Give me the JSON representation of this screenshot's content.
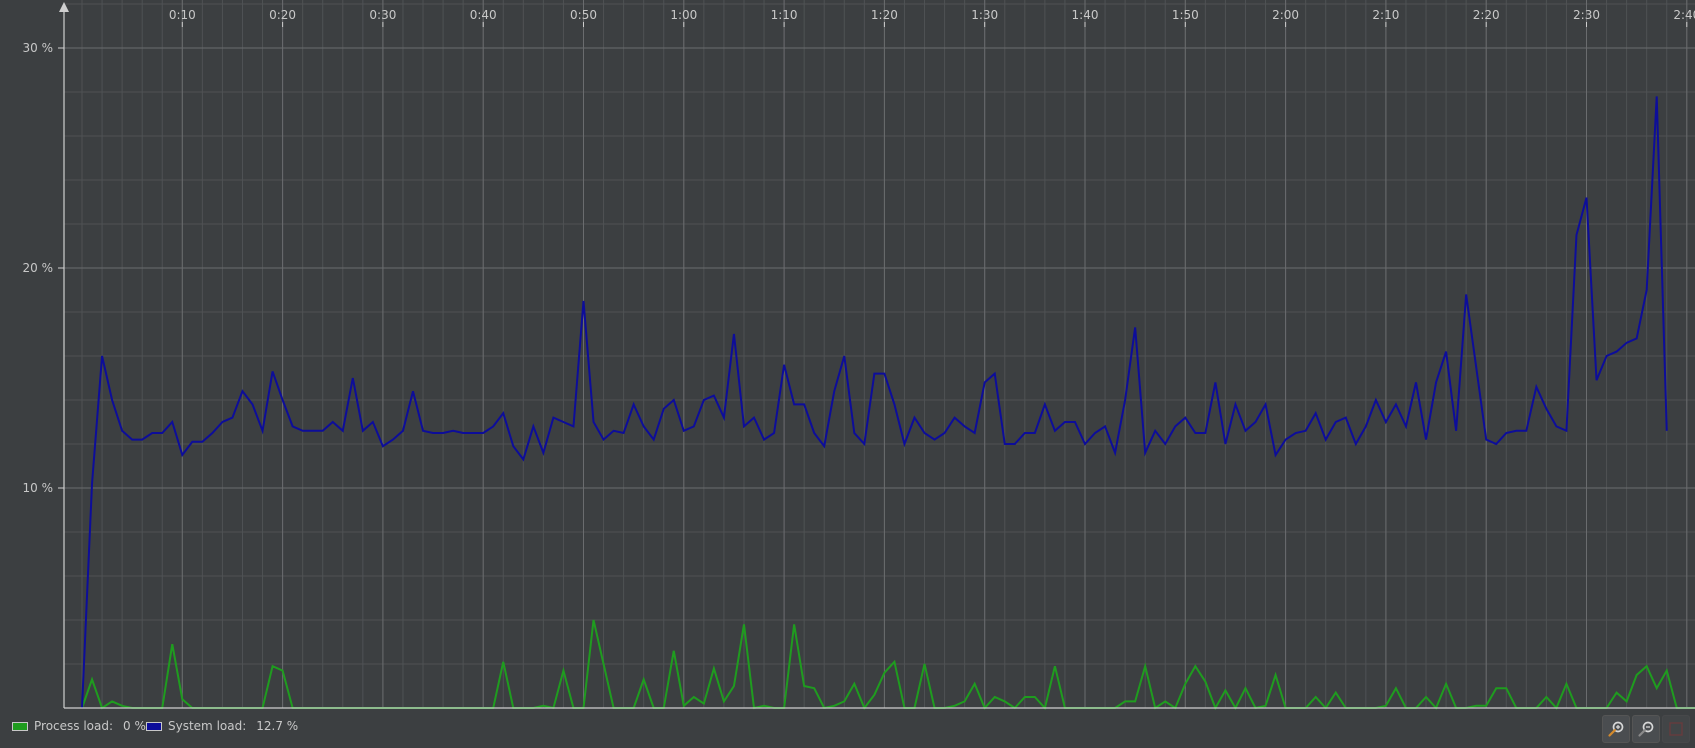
{
  "colors": {
    "background": "#3c3f41",
    "grid_major": "#6a6c6e",
    "grid_minor": "#4f5254",
    "axis": "#cfcfcf",
    "process": "#1f9c1f",
    "system": "#0d0d9a"
  },
  "legend": {
    "process_label": "Process load:",
    "process_value": "0 %",
    "system_label": "System load:",
    "system_value": "12.7 %"
  },
  "toolbar": {
    "zoom_in_icon": "magnifier-plus-icon",
    "zoom_out_icon": "magnifier-minus-icon",
    "fit_icon": "fit-icon"
  },
  "chart_data": {
    "type": "line",
    "grid": true,
    "legend_position": "bottom-left",
    "xlim": [
      0,
      160
    ],
    "ylim": [
      0,
      30
    ],
    "x_ticks": [
      "0:10",
      "0:20",
      "0:30",
      "0:40",
      "0:50",
      "1:00",
      "1:10",
      "1:20",
      "1:30",
      "1:40",
      "1:50",
      "2:00",
      "2:10",
      "2:20",
      "2:30",
      "2:40"
    ],
    "y_ticks": [
      "10 %",
      "20 %",
      "30 %"
    ],
    "series": [
      {
        "name": "System load",
        "color": "#0d0d9a",
        "values": [
          0,
          10.2,
          16,
          14,
          12.6,
          12.2,
          12.2,
          12.5,
          12.5,
          13,
          11.5,
          12.1,
          12.1,
          12.5,
          13,
          13.2,
          14.4,
          13.8,
          12.6,
          15.3,
          14,
          12.8,
          12.6,
          12.6,
          12.6,
          13,
          12.6,
          15,
          12.6,
          13,
          11.9,
          12.2,
          12.6,
          14.4,
          12.6,
          12.5,
          12.5,
          12.6,
          12.5,
          12.5,
          12.5,
          12.8,
          13.4,
          11.9,
          11.3,
          12.8,
          11.6,
          13.2,
          13,
          12.8,
          18.5,
          13,
          12.2,
          12.6,
          12.5,
          13.8,
          12.8,
          12.2,
          13.6,
          14,
          12.6,
          12.8,
          14,
          14.2,
          13.2,
          17,
          12.8,
          13.2,
          12.2,
          12.5,
          15.6,
          13.8,
          13.8,
          12.5,
          11.9,
          14.4,
          16,
          12.5,
          12,
          15.2,
          15.2,
          13.8,
          12,
          13.2,
          12.5,
          12.2,
          12.5,
          13.2,
          12.8,
          12.5,
          14.8,
          15.2,
          12,
          12,
          12.5,
          12.5,
          13.8,
          12.6,
          13,
          13,
          12,
          12.5,
          12.8,
          11.6,
          14,
          17.3,
          11.6,
          12.6,
          12,
          12.8,
          13.2,
          12.5,
          12.5,
          14.8,
          12,
          13.8,
          12.6,
          13,
          13.8,
          11.5,
          12.2,
          12.5,
          12.6,
          13.4,
          12.2,
          13,
          13.2,
          12,
          12.8,
          14,
          13,
          13.8,
          12.8,
          14.8,
          12.2,
          14.8,
          16.2,
          12.6,
          18.8,
          15.5,
          12.2,
          12,
          12.5,
          12.6,
          12.6,
          14.6,
          13.6,
          12.8,
          12.6,
          21.5,
          23.2,
          14.9,
          16,
          16.2,
          16.6,
          16.8,
          19,
          27.8,
          12.6
        ]
      },
      {
        "name": "Process load",
        "color": "#1f9c1f",
        "values": [
          0,
          1.3,
          0,
          0.3,
          0.1,
          0,
          0,
          0,
          0,
          2.9,
          0.4,
          0,
          0,
          0,
          0,
          0,
          0,
          0,
          0,
          1.9,
          1.7,
          0,
          0,
          0,
          0,
          0,
          0,
          0,
          0,
          0,
          0,
          0,
          0,
          0,
          0,
          0,
          0,
          0,
          0,
          0,
          0,
          0,
          2.1,
          0,
          0,
          0,
          0.1,
          0,
          1.7,
          0,
          0,
          4,
          2,
          0,
          0,
          0,
          1.3,
          0,
          0,
          2.6,
          0.1,
          0.5,
          0.2,
          1.8,
          0.3,
          1,
          3.8,
          0,
          0.1,
          0,
          0,
          3.8,
          1,
          0.9,
          0,
          0.1,
          0.3,
          1.1,
          0,
          0.6,
          1.6,
          2.1,
          0,
          0,
          2,
          0,
          0,
          0.1,
          0.3,
          1.1,
          0,
          0.5,
          0.3,
          0,
          0.5,
          0.5,
          0,
          1.9,
          0,
          0,
          0,
          0,
          0,
          0,
          0.3,
          0.3,
          1.9,
          0,
          0.3,
          0,
          1.1,
          1.9,
          1.2,
          0,
          0.8,
          0,
          0.9,
          0,
          0.1,
          1.5,
          0,
          0,
          0,
          0.5,
          0,
          0.7,
          0,
          0,
          0,
          0,
          0.1,
          0.9,
          0,
          0,
          0.5,
          0,
          1.1,
          0,
          0,
          0.1,
          0.1,
          0.9,
          0.9,
          0,
          0,
          0,
          0.5,
          0,
          1.1,
          0,
          0,
          0,
          0,
          0.7,
          0.3,
          1.5,
          1.9,
          0.9,
          1.7,
          0,
          0,
          0
        ]
      }
    ]
  }
}
